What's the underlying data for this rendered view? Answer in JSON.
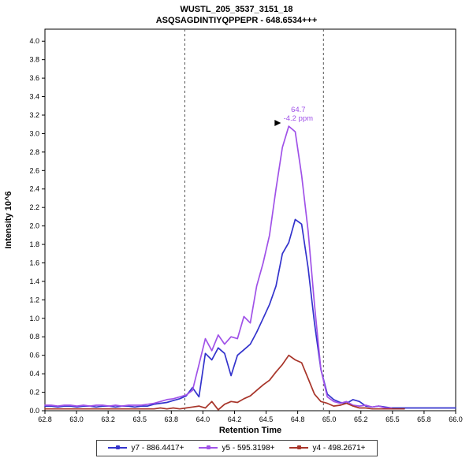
{
  "header": {
    "title_line1": "WUSTL_205_3537_3151_18",
    "title_line2": "ASQSAGDINTIYQPPEPR - 648.6534+++"
  },
  "chart_data": {
    "type": "line",
    "title": "WUSTL_205_3537_3151_18",
    "subtitle": "ASQSAGDINTIYQPPEPR - 648.6534+++",
    "xlabel": "Retention Time",
    "ylabel": "Intensity 10^6",
    "xlim": [
      62.8,
      66.0
    ],
    "ylim": [
      0,
      4.13
    ],
    "xtick_labels": [
      "62.8",
      "63.0",
      "63.2",
      "63.5",
      "63.8",
      "64.0",
      "64.2",
      "64.5",
      "64.8",
      "65.0",
      "65.2",
      "65.5",
      "65.8",
      "66.0"
    ],
    "ytick_step": 0.2,
    "ytick_max": 4.0,
    "grid": false,
    "legend_position": "bottom",
    "integration_boundaries": [
      63.89,
      64.97
    ],
    "annotation": {
      "rt": "64.7",
      "ppm": "-4.2 ppm",
      "x": 64.7,
      "y": 3.08
    },
    "series": [
      {
        "name": "y7 - 886.4417+",
        "color": "#3333cc",
        "x": [
          62.8,
          62.85,
          62.9,
          62.95,
          63.0,
          63.05,
          63.1,
          63.15,
          63.2,
          63.25,
          63.3,
          63.35,
          63.4,
          63.45,
          63.5,
          63.55,
          63.6,
          63.65,
          63.7,
          63.75,
          63.8,
          63.85,
          63.9,
          63.95,
          64.0,
          64.05,
          64.1,
          64.15,
          64.2,
          64.25,
          64.3,
          64.35,
          64.4,
          64.45,
          64.5,
          64.55,
          64.6,
          64.65,
          64.7,
          64.75,
          64.8,
          64.85,
          64.9,
          64.95,
          65.0,
          65.05,
          65.1,
          65.15,
          65.2,
          65.25,
          65.3,
          65.35,
          65.4,
          65.45,
          65.5,
          65.55,
          65.6,
          65.65,
          65.7,
          65.75,
          65.8,
          65.85,
          65.9,
          65.95,
          66.0
        ],
        "y": [
          0.05,
          0.05,
          0.04,
          0.05,
          0.05,
          0.04,
          0.05,
          0.05,
          0.04,
          0.05,
          0.05,
          0.04,
          0.05,
          0.05,
          0.04,
          0.05,
          0.05,
          0.07,
          0.08,
          0.09,
          0.11,
          0.13,
          0.16,
          0.25,
          0.15,
          0.62,
          0.55,
          0.68,
          0.62,
          0.38,
          0.6,
          0.66,
          0.72,
          0.85,
          1.0,
          1.15,
          1.35,
          1.7,
          1.82,
          2.07,
          2.02,
          1.55,
          0.95,
          0.45,
          0.18,
          0.12,
          0.09,
          0.08,
          0.12,
          0.1,
          0.05,
          0.04,
          0.05,
          0.04,
          0.03,
          0.03,
          0.03,
          0.03,
          0.03,
          0.03,
          0.03,
          0.03,
          0.03,
          0.03,
          0.03
        ]
      },
      {
        "name": "y5 - 595.3198+",
        "color": "#a052e8",
        "x": [
          62.8,
          62.85,
          62.9,
          62.95,
          63.0,
          63.05,
          63.1,
          63.15,
          63.2,
          63.25,
          63.3,
          63.35,
          63.4,
          63.45,
          63.5,
          63.55,
          63.6,
          63.65,
          63.7,
          63.75,
          63.8,
          63.85,
          63.9,
          63.95,
          64.0,
          64.05,
          64.1,
          64.15,
          64.2,
          64.25,
          64.3,
          64.35,
          64.4,
          64.45,
          64.5,
          64.55,
          64.6,
          64.65,
          64.7,
          64.75,
          64.8,
          64.85,
          64.9,
          64.95,
          65.0,
          65.05,
          65.1,
          65.15,
          65.2,
          65.25,
          65.3,
          65.35,
          65.4,
          65.45,
          65.5
        ],
        "y": [
          0.06,
          0.06,
          0.05,
          0.06,
          0.06,
          0.05,
          0.06,
          0.05,
          0.06,
          0.06,
          0.05,
          0.06,
          0.05,
          0.06,
          0.06,
          0.06,
          0.07,
          0.08,
          0.1,
          0.12,
          0.13,
          0.15,
          0.17,
          0.22,
          0.5,
          0.78,
          0.65,
          0.82,
          0.72,
          0.8,
          0.78,
          1.02,
          0.95,
          1.35,
          1.6,
          1.9,
          2.4,
          2.85,
          3.08,
          3.02,
          2.55,
          1.95,
          1.15,
          0.45,
          0.15,
          0.1,
          0.08,
          0.1,
          0.06,
          0.05,
          0.06,
          0.04,
          0.05,
          0.03,
          0.03
        ]
      },
      {
        "name": "y4 - 498.2671+",
        "color": "#a8352a",
        "x": [
          62.8,
          62.85,
          62.9,
          62.95,
          63.0,
          63.05,
          63.1,
          63.15,
          63.2,
          63.25,
          63.3,
          63.35,
          63.4,
          63.45,
          63.5,
          63.55,
          63.6,
          63.65,
          63.7,
          63.75,
          63.8,
          63.85,
          63.9,
          63.95,
          64.0,
          64.05,
          64.1,
          64.15,
          64.2,
          64.25,
          64.3,
          64.35,
          64.4,
          64.45,
          64.5,
          64.55,
          64.6,
          64.65,
          64.7,
          64.75,
          64.8,
          64.85,
          64.9,
          64.95,
          65.0,
          65.05,
          65.1,
          65.15,
          65.2,
          65.25,
          65.3,
          65.35,
          65.4,
          65.45,
          65.5,
          65.55,
          65.6
        ],
        "y": [
          0.02,
          0.02,
          0.02,
          0.02,
          0.02,
          0.02,
          0.02,
          0.02,
          0.02,
          0.02,
          0.02,
          0.02,
          0.02,
          0.02,
          0.02,
          0.02,
          0.02,
          0.02,
          0.03,
          0.02,
          0.03,
          0.02,
          0.03,
          0.04,
          0.05,
          0.03,
          0.1,
          0.01,
          0.07,
          0.1,
          0.09,
          0.13,
          0.16,
          0.22,
          0.28,
          0.33,
          0.42,
          0.5,
          0.6,
          0.55,
          0.52,
          0.35,
          0.18,
          0.1,
          0.08,
          0.05,
          0.06,
          0.08,
          0.05,
          0.03,
          0.03,
          0.02,
          0.02,
          0.02,
          0.02,
          0.02,
          0.02
        ]
      }
    ]
  }
}
